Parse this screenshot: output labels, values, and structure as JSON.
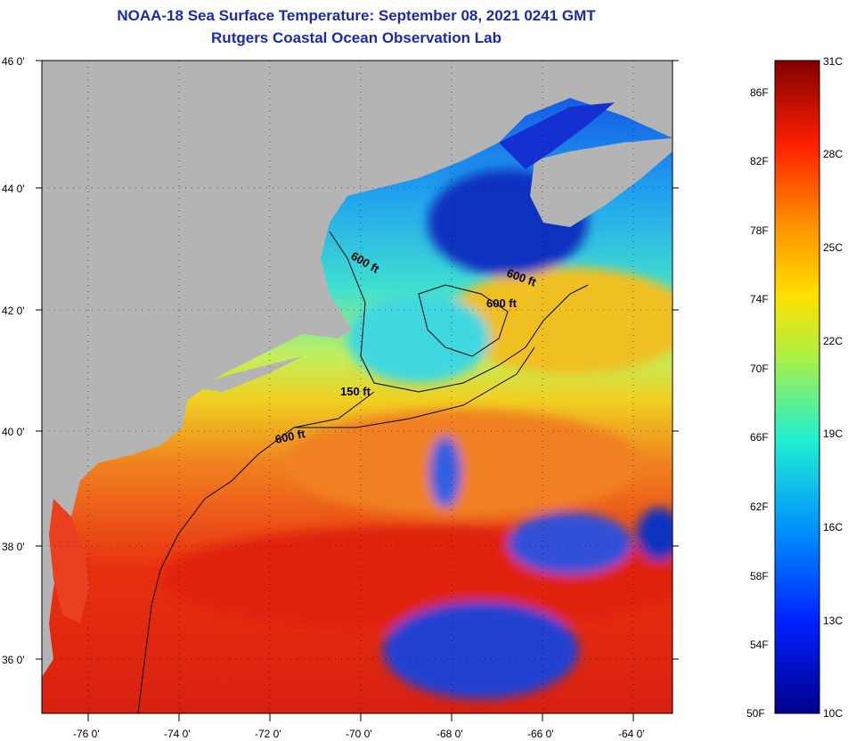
{
  "title": "NOAA-18 Sea Surface Temperature:  September 08, 2021 0241 GMT",
  "subtitle": "Rutgers Coastal Ocean Observation Lab",
  "lat_labels": [
    "46 0'",
    "44 0'",
    "42 0'",
    "40 0'",
    "38 0'",
    "36 0'"
  ],
  "lon_labels": [
    "-76 0'",
    "-74 0'",
    "-72 0'",
    "-70 0'",
    "-68 0'",
    "-66 0'",
    "-64 0'"
  ],
  "contour_labels": [
    "600 ft",
    "600 ft",
    "600 ft",
    "150 ft",
    "600 ft"
  ],
  "colorbar": {
    "fahrenheit": [
      "86F",
      "82F",
      "78F",
      "74F",
      "70F",
      "66F",
      "62F",
      "58F",
      "54F",
      "50F"
    ],
    "celsius": [
      "31C",
      "28C",
      "25C",
      "22C",
      "19C",
      "16C",
      "13C",
      "10C"
    ],
    "range_c": [
      10,
      31
    ]
  },
  "colors": {
    "title": "#1a2bb0",
    "land": "#b4b4b4",
    "warm": "#e83010",
    "cold": "#1030d0"
  }
}
